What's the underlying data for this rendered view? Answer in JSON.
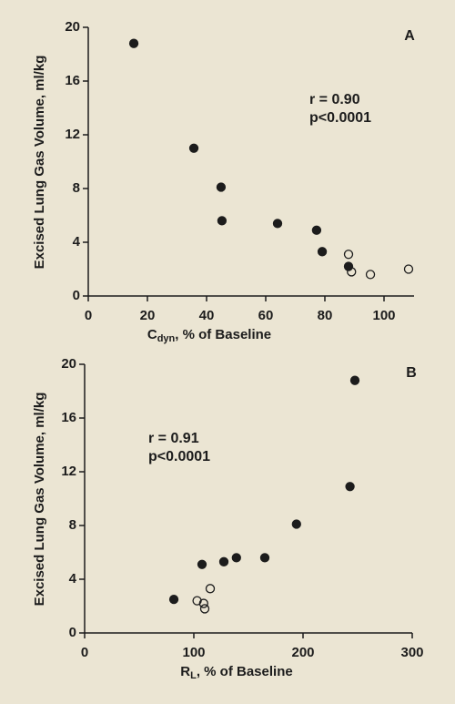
{
  "chart_data": [
    {
      "type": "scatter",
      "panel": "A",
      "x_label_main": "C",
      "x_label_sub": "dyn",
      "x_label_rest": ", % of Baseline",
      "y_label": "Excised Lung Gas Volume, ml/kg",
      "annotations": [
        "r = 0.90",
        "p<0.0001"
      ],
      "xlim": [
        0,
        110
      ],
      "xticks": [
        0,
        20,
        40,
        60,
        80,
        100
      ],
      "ylim": [
        0,
        20
      ],
      "yticks": [
        0,
        4,
        8,
        12,
        16,
        20
      ],
      "series": [
        {
          "color": "#1c1c1c",
          "filled": true,
          "x": [
            15.4,
            35.7,
            44.9,
            45.2,
            64,
            77.2,
            79.1,
            88
          ],
          "values": [
            18.8,
            11.0,
            8.1,
            5.6,
            5.4,
            4.9,
            3.3,
            2.2
          ]
        },
        {
          "color": "#1c1c1c",
          "filled": false,
          "x": [
            88,
            89,
            95.4,
            108.3
          ],
          "values": [
            3.1,
            1.8,
            1.6,
            2.0
          ]
        }
      ]
    },
    {
      "type": "scatter",
      "panel": "B",
      "x_label_main": "R",
      "x_label_sub": "L",
      "x_label_rest": ", % of Baseline",
      "y_label": "Excised Lung Gas Volume, ml/kg",
      "annotations": [
        "r = 0.91",
        "p<0.0001"
      ],
      "xlim": [
        0,
        300
      ],
      "xticks": [
        0,
        100,
        200,
        300
      ],
      "ylim": [
        0,
        20
      ],
      "yticks": [
        0,
        4,
        8,
        12,
        16,
        20
      ],
      "series": [
        {
          "color": "#1c1c1c",
          "filled": true,
          "x": [
            247.5,
            243,
            194,
            165,
            139,
            127.5,
            107.5,
            81.7
          ],
          "values": [
            18.8,
            10.9,
            8.1,
            5.6,
            5.6,
            5.3,
            5.1,
            2.5
          ]
        },
        {
          "color": "#1c1c1c",
          "filled": false,
          "x": [
            115,
            103,
            109,
            110
          ],
          "values": [
            3.3,
            2.4,
            2.2,
            1.8
          ]
        }
      ]
    }
  ]
}
